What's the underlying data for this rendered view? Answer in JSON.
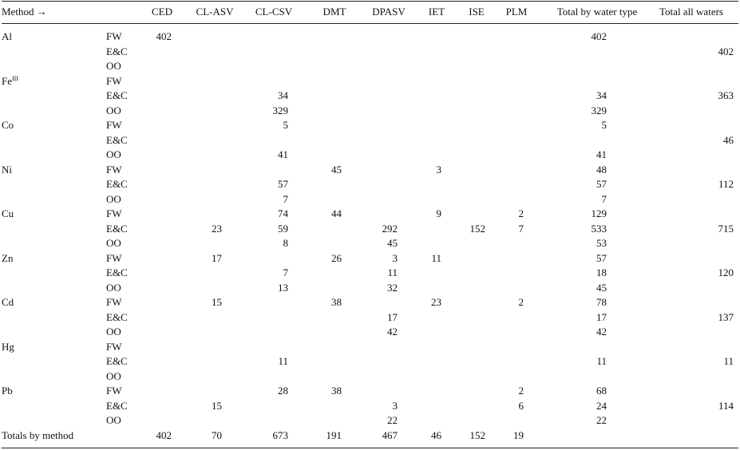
{
  "header": {
    "method_label": "Method →",
    "columns": [
      "CED",
      "CL-ASV",
      "CL-CSV",
      "DMT",
      "DPASV",
      "IET",
      "ISE",
      "PLM",
      "Total by water type",
      "Total all waters"
    ]
  },
  "rows": [
    {
      "metal": "Al",
      "water": "FW",
      "vals": [
        "402",
        "",
        "",
        "",
        "",
        "",
        "",
        "",
        "402",
        ""
      ]
    },
    {
      "metal": "",
      "water": "E&C",
      "vals": [
        "",
        "",
        "",
        "",
        "",
        "",
        "",
        "",
        "",
        "402"
      ]
    },
    {
      "metal": "",
      "water": "OO",
      "vals": [
        "",
        "",
        "",
        "",
        "",
        "",
        "",
        "",
        "",
        ""
      ]
    },
    {
      "metal": "Fe",
      "metal_sup": "III",
      "water": "FW",
      "vals": [
        "",
        "",
        "",
        "",
        "",
        "",
        "",
        "",
        "",
        ""
      ]
    },
    {
      "metal": "",
      "water": "E&C",
      "vals": [
        "",
        "",
        "34",
        "",
        "",
        "",
        "",
        "",
        "34",
        "363"
      ]
    },
    {
      "metal": "",
      "water": "OO",
      "vals": [
        "",
        "",
        "329",
        "",
        "",
        "",
        "",
        "",
        "329",
        ""
      ]
    },
    {
      "metal": "Co",
      "water": "FW",
      "vals": [
        "",
        "",
        "5",
        "",
        "",
        "",
        "",
        "",
        "5",
        ""
      ]
    },
    {
      "metal": "",
      "water": "E&C",
      "vals": [
        "",
        "",
        "",
        "",
        "",
        "",
        "",
        "",
        "",
        "46"
      ]
    },
    {
      "metal": "",
      "water": "OO",
      "vals": [
        "",
        "",
        "41",
        "",
        "",
        "",
        "",
        "",
        "41",
        ""
      ]
    },
    {
      "metal": "Ni",
      "water": "FW",
      "vals": [
        "",
        "",
        "",
        "45",
        "",
        "3",
        "",
        "",
        "48",
        ""
      ]
    },
    {
      "metal": "",
      "water": "E&C",
      "vals": [
        "",
        "",
        "57",
        "",
        "",
        "",
        "",
        "",
        "57",
        "112"
      ]
    },
    {
      "metal": "",
      "water": "OO",
      "vals": [
        "",
        "",
        "7",
        "",
        "",
        "",
        "",
        "",
        "7",
        ""
      ]
    },
    {
      "metal": "Cu",
      "water": "FW",
      "vals": [
        "",
        "",
        "74",
        "44",
        "",
        "9",
        "",
        "2",
        "129",
        ""
      ]
    },
    {
      "metal": "",
      "water": "E&C",
      "vals": [
        "",
        "23",
        "59",
        "",
        "292",
        "",
        "152",
        "7",
        "533",
        "715"
      ]
    },
    {
      "metal": "",
      "water": "OO",
      "vals": [
        "",
        "",
        "8",
        "",
        "45",
        "",
        "",
        "",
        "53",
        ""
      ]
    },
    {
      "metal": "Zn",
      "water": "FW",
      "vals": [
        "",
        "17",
        "",
        "26",
        "3",
        "11",
        "",
        "",
        "57",
        ""
      ]
    },
    {
      "metal": "",
      "water": "E&C",
      "vals": [
        "",
        "",
        "7",
        "",
        "11",
        "",
        "",
        "",
        "18",
        "120"
      ]
    },
    {
      "metal": "",
      "water": "OO",
      "vals": [
        "",
        "",
        "13",
        "",
        "32",
        "",
        "",
        "",
        "45",
        ""
      ]
    },
    {
      "metal": "Cd",
      "water": "FW",
      "vals": [
        "",
        "15",
        "",
        "38",
        "",
        "23",
        "",
        "2",
        "78",
        ""
      ]
    },
    {
      "metal": "",
      "water": "E&C",
      "vals": [
        "",
        "",
        "",
        "",
        "17",
        "",
        "",
        "",
        "17",
        "137"
      ]
    },
    {
      "metal": "",
      "water": "OO",
      "vals": [
        "",
        "",
        "",
        "",
        "42",
        "",
        "",
        "",
        "42",
        ""
      ]
    },
    {
      "metal": "Hg",
      "water": "FW",
      "vals": [
        "",
        "",
        "",
        "",
        "",
        "",
        "",
        "",
        "",
        ""
      ]
    },
    {
      "metal": "",
      "water": "E&C",
      "vals": [
        "",
        "",
        "11",
        "",
        "",
        "",
        "",
        "",
        "11",
        "11"
      ]
    },
    {
      "metal": "",
      "water": "OO",
      "vals": [
        "",
        "",
        "",
        "",
        "",
        "",
        "",
        "",
        "",
        ""
      ]
    },
    {
      "metal": "Pb",
      "water": "FW",
      "vals": [
        "",
        "",
        "28",
        "38",
        "",
        "",
        "",
        "2",
        "68",
        ""
      ]
    },
    {
      "metal": "",
      "water": "E&C",
      "vals": [
        "",
        "15",
        "",
        "",
        "3",
        "",
        "",
        "6",
        "24",
        "114"
      ]
    },
    {
      "metal": "",
      "water": "OO",
      "vals": [
        "",
        "",
        "",
        "",
        "22",
        "",
        "",
        "",
        "22",
        ""
      ]
    }
  ],
  "totals": {
    "label": "Totals by method",
    "vals": [
      "402",
      "70",
      "673",
      "191",
      "467",
      "46",
      "152",
      "19",
      "",
      ""
    ]
  }
}
